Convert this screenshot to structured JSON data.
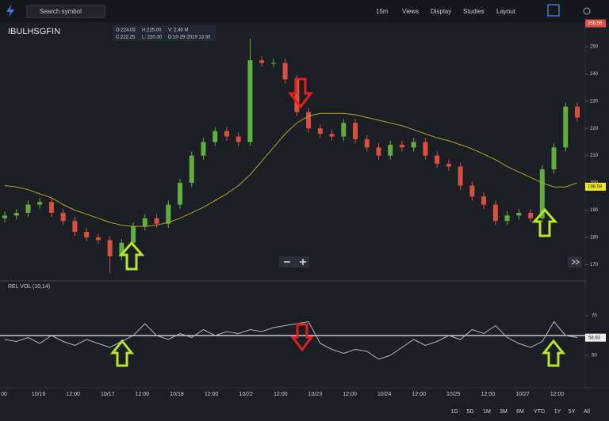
{
  "toolbar": {
    "search_placeholder": "Search symbol",
    "menus": [
      "15m",
      "Views",
      "Display",
      "Studies",
      "Layout"
    ]
  },
  "chart_data": [
    {
      "type": "candlestick",
      "title": "IBULHSGFIN",
      "info": [
        "O:224.00",
        "H:225.00",
        "V: 2.46 M",
        "C:222.25",
        "L: 220.30",
        "D:10-29-2019 13:30"
      ],
      "open": [
        187,
        188,
        189,
        192,
        193,
        189,
        186,
        182,
        180,
        179,
        173,
        178,
        184,
        187,
        185,
        192,
        200,
        210,
        215,
        219,
        217,
        215,
        245,
        244,
        244,
        238,
        226,
        220,
        218,
        217,
        222,
        216,
        213,
        210,
        214,
        213,
        215,
        210,
        207,
        206,
        199,
        195,
        192,
        186,
        188,
        189,
        187,
        205,
        213,
        228
      ],
      "high": [
        189.5,
        190.5,
        193.5,
        194.5,
        194.5,
        190.5,
        187.5,
        183.5,
        181.5,
        180.5,
        179.5,
        185.5,
        188.5,
        188.5,
        193.5,
        201.5,
        211.5,
        216.5,
        220.5,
        220.5,
        218.5,
        253,
        246.5,
        245.5,
        245.5,
        239.5,
        227.5,
        221.5,
        219.5,
        223.5,
        223.5,
        217.5,
        214.5,
        215.5,
        215.5,
        216.5,
        216.5,
        211.5,
        208.5,
        207.5,
        200.5,
        196.5,
        193.5,
        189.5,
        190.5,
        190.5,
        206.5,
        214.5,
        229.5,
        229.5
      ],
      "low": [
        185.5,
        186.5,
        187.5,
        190.5,
        187.5,
        184.5,
        180.5,
        178.5,
        177.5,
        167,
        171.5,
        176.5,
        182.5,
        183.5,
        183.5,
        190.5,
        198.5,
        208.5,
        213.5,
        215.5,
        213.5,
        213.5,
        242.5,
        242.5,
        236.5,
        224.5,
        218.5,
        216.5,
        215.5,
        215.5,
        214.5,
        211.5,
        208.5,
        208.5,
        211.5,
        211.5,
        208.5,
        205.5,
        204.5,
        197.5,
        193.5,
        190.5,
        184.5,
        184.5,
        186.5,
        185.5,
        185.5,
        203.5,
        211.5,
        222.5
      ],
      "close": [
        188,
        189,
        192,
        193,
        189,
        186,
        182,
        180,
        179,
        173,
        178,
        184,
        187,
        185,
        192,
        200,
        210,
        215,
        219,
        217,
        215,
        245,
        244,
        244,
        238,
        226,
        220,
        218,
        217,
        222,
        216,
        213,
        210,
        214,
        213,
        215,
        210,
        207,
        206,
        199,
        195,
        192,
        186,
        188,
        189,
        187,
        205,
        213,
        228,
        224
      ],
      "up_color": "#5fae3e",
      "down_color": "#d9503f",
      "moving_average": {
        "color": "#b3a81c",
        "values": [
          199,
          198.5,
          197.5,
          196,
          194.5,
          192,
          190,
          188.5,
          187,
          185.5,
          184.5,
          184,
          184,
          184.5,
          185.5,
          187,
          189,
          191,
          193.5,
          196,
          199,
          203,
          208,
          213,
          218,
          222,
          224.5,
          225.5,
          225.5,
          225.5,
          225,
          224,
          223,
          222,
          221,
          219.5,
          218,
          216.5,
          215.5,
          214,
          212.5,
          210.5,
          208.5,
          206,
          204,
          202,
          200,
          198.5,
          198.5,
          200
        ]
      },
      "last_price": 198.58,
      "high_price": 258.56,
      "ylim": [
        164,
        259
      ],
      "yticks": [
        170,
        180,
        190,
        200,
        210,
        220,
        230,
        240,
        250
      ]
    },
    {
      "type": "line",
      "title": "REL VOL (10,14)",
      "color": "#b8b8b8",
      "values": [
        58,
        57,
        59,
        56,
        60,
        57,
        55,
        58,
        56,
        54,
        57,
        60,
        66,
        60,
        58,
        61,
        59,
        63,
        60,
        62,
        61,
        63,
        62,
        64,
        65,
        66,
        67,
        56,
        53,
        51,
        53,
        52,
        48,
        50,
        54,
        58,
        55,
        57,
        60,
        58,
        63,
        61,
        65,
        59,
        56,
        54,
        57,
        67,
        60,
        59
      ],
      "reference": 60,
      "last_value": 58.93,
      "ylim": [
        33.6,
        86.8
      ],
      "yticks": [
        50,
        70
      ]
    }
  ],
  "x_labels": [
    "00",
    "10/16",
    "12:00",
    "10/17",
    "12:00",
    "10/18",
    "12:00",
    "10/22",
    "12:00",
    "10/23",
    "12:00",
    "10/24",
    "12:00",
    "10/25",
    "12:00",
    "10/27",
    "12:00"
  ],
  "ranges": [
    "1D",
    "5D",
    "1M",
    "3M",
    "6M",
    "YTD",
    "1Y",
    "5Y",
    "All"
  ]
}
